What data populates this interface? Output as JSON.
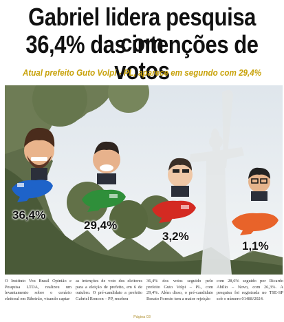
{
  "headline": {
    "line1": "Gabriel lidera pesquisa com",
    "line2": "36,4% das intenções de votos"
  },
  "subtitle": "Atual prefeito Guto Volpi - PL, aparece em segundo com 29,4%",
  "candidates": [
    {
      "percent": "36,4%",
      "plane_color": "#1e63c9"
    },
    {
      "percent": "29,4%",
      "plane_color": "#2f8f3a"
    },
    {
      "percent": "3,2%",
      "plane_color": "#d42a22"
    },
    {
      "percent": "1,1%",
      "plane_color": "#e8632a"
    }
  ],
  "body_columns": [
    "O Instituto Vox Brasil Opinião e Pesquisa LTDA, realizou um levantamento sobre o cenário eleitoral em Ribeirão, visando captar",
    "as intenções de voto dos eleitores para a eleição de prefeito, em 6 de outubro. O pré-candidato a prefeito Gabriel Roncon – PP, recebeu",
    "36,4% dos votos seguido pelo prefeito Guto Volpi – PL, com 29,4%. Além disso, o pré-candidato Renato Foresto tem a maior rejeição",
    "com 28,6% seguido por Ricardo Abílio – Novo, com 26,3%. A pesquisa foi registrada no TSE-SP sob o número 01488/2024."
  ],
  "footer": "Página 03"
}
